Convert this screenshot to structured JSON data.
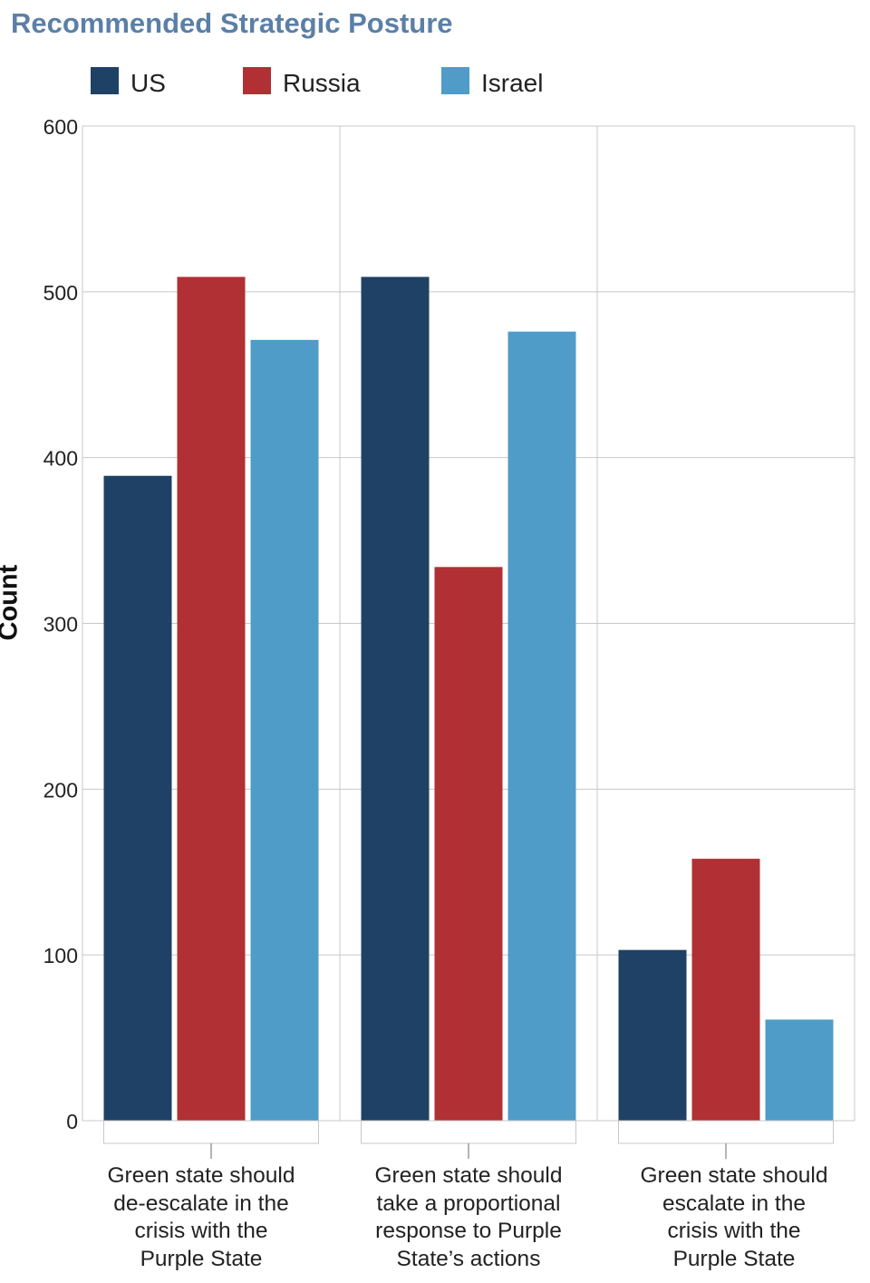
{
  "chart_data": {
    "type": "bar",
    "title": "Recommended Strategic Posture",
    "xlabel": "",
    "ylabel": "Count",
    "ylim": [
      0,
      600
    ],
    "yticks": [
      0,
      100,
      200,
      300,
      400,
      500,
      600
    ],
    "grid": true,
    "legend_position": "top",
    "categories": [
      "Green state should de-escalate in the crisis with the Purple State",
      "Green state should take a proportional response to Purple State’s actions",
      "Green state should escalate in the crisis with the Purple State"
    ],
    "category_lines": [
      "Green state should\nde-escalate in the\ncrisis with the\nPurple State",
      "Green state should\ntake a proportional\nresponse to Purple\nState’s actions",
      "Green state should\nescalate in the\ncrisis with the\nPurple State"
    ],
    "series": [
      {
        "name": "US",
        "color": "#1f4165",
        "values": [
          389,
          509,
          103
        ]
      },
      {
        "name": "Russia",
        "color": "#b03033",
        "values": [
          509,
          334,
          158
        ]
      },
      {
        "name": "Israel",
        "color": "#4f9cc8",
        "values": [
          471,
          476,
          61
        ]
      }
    ]
  }
}
